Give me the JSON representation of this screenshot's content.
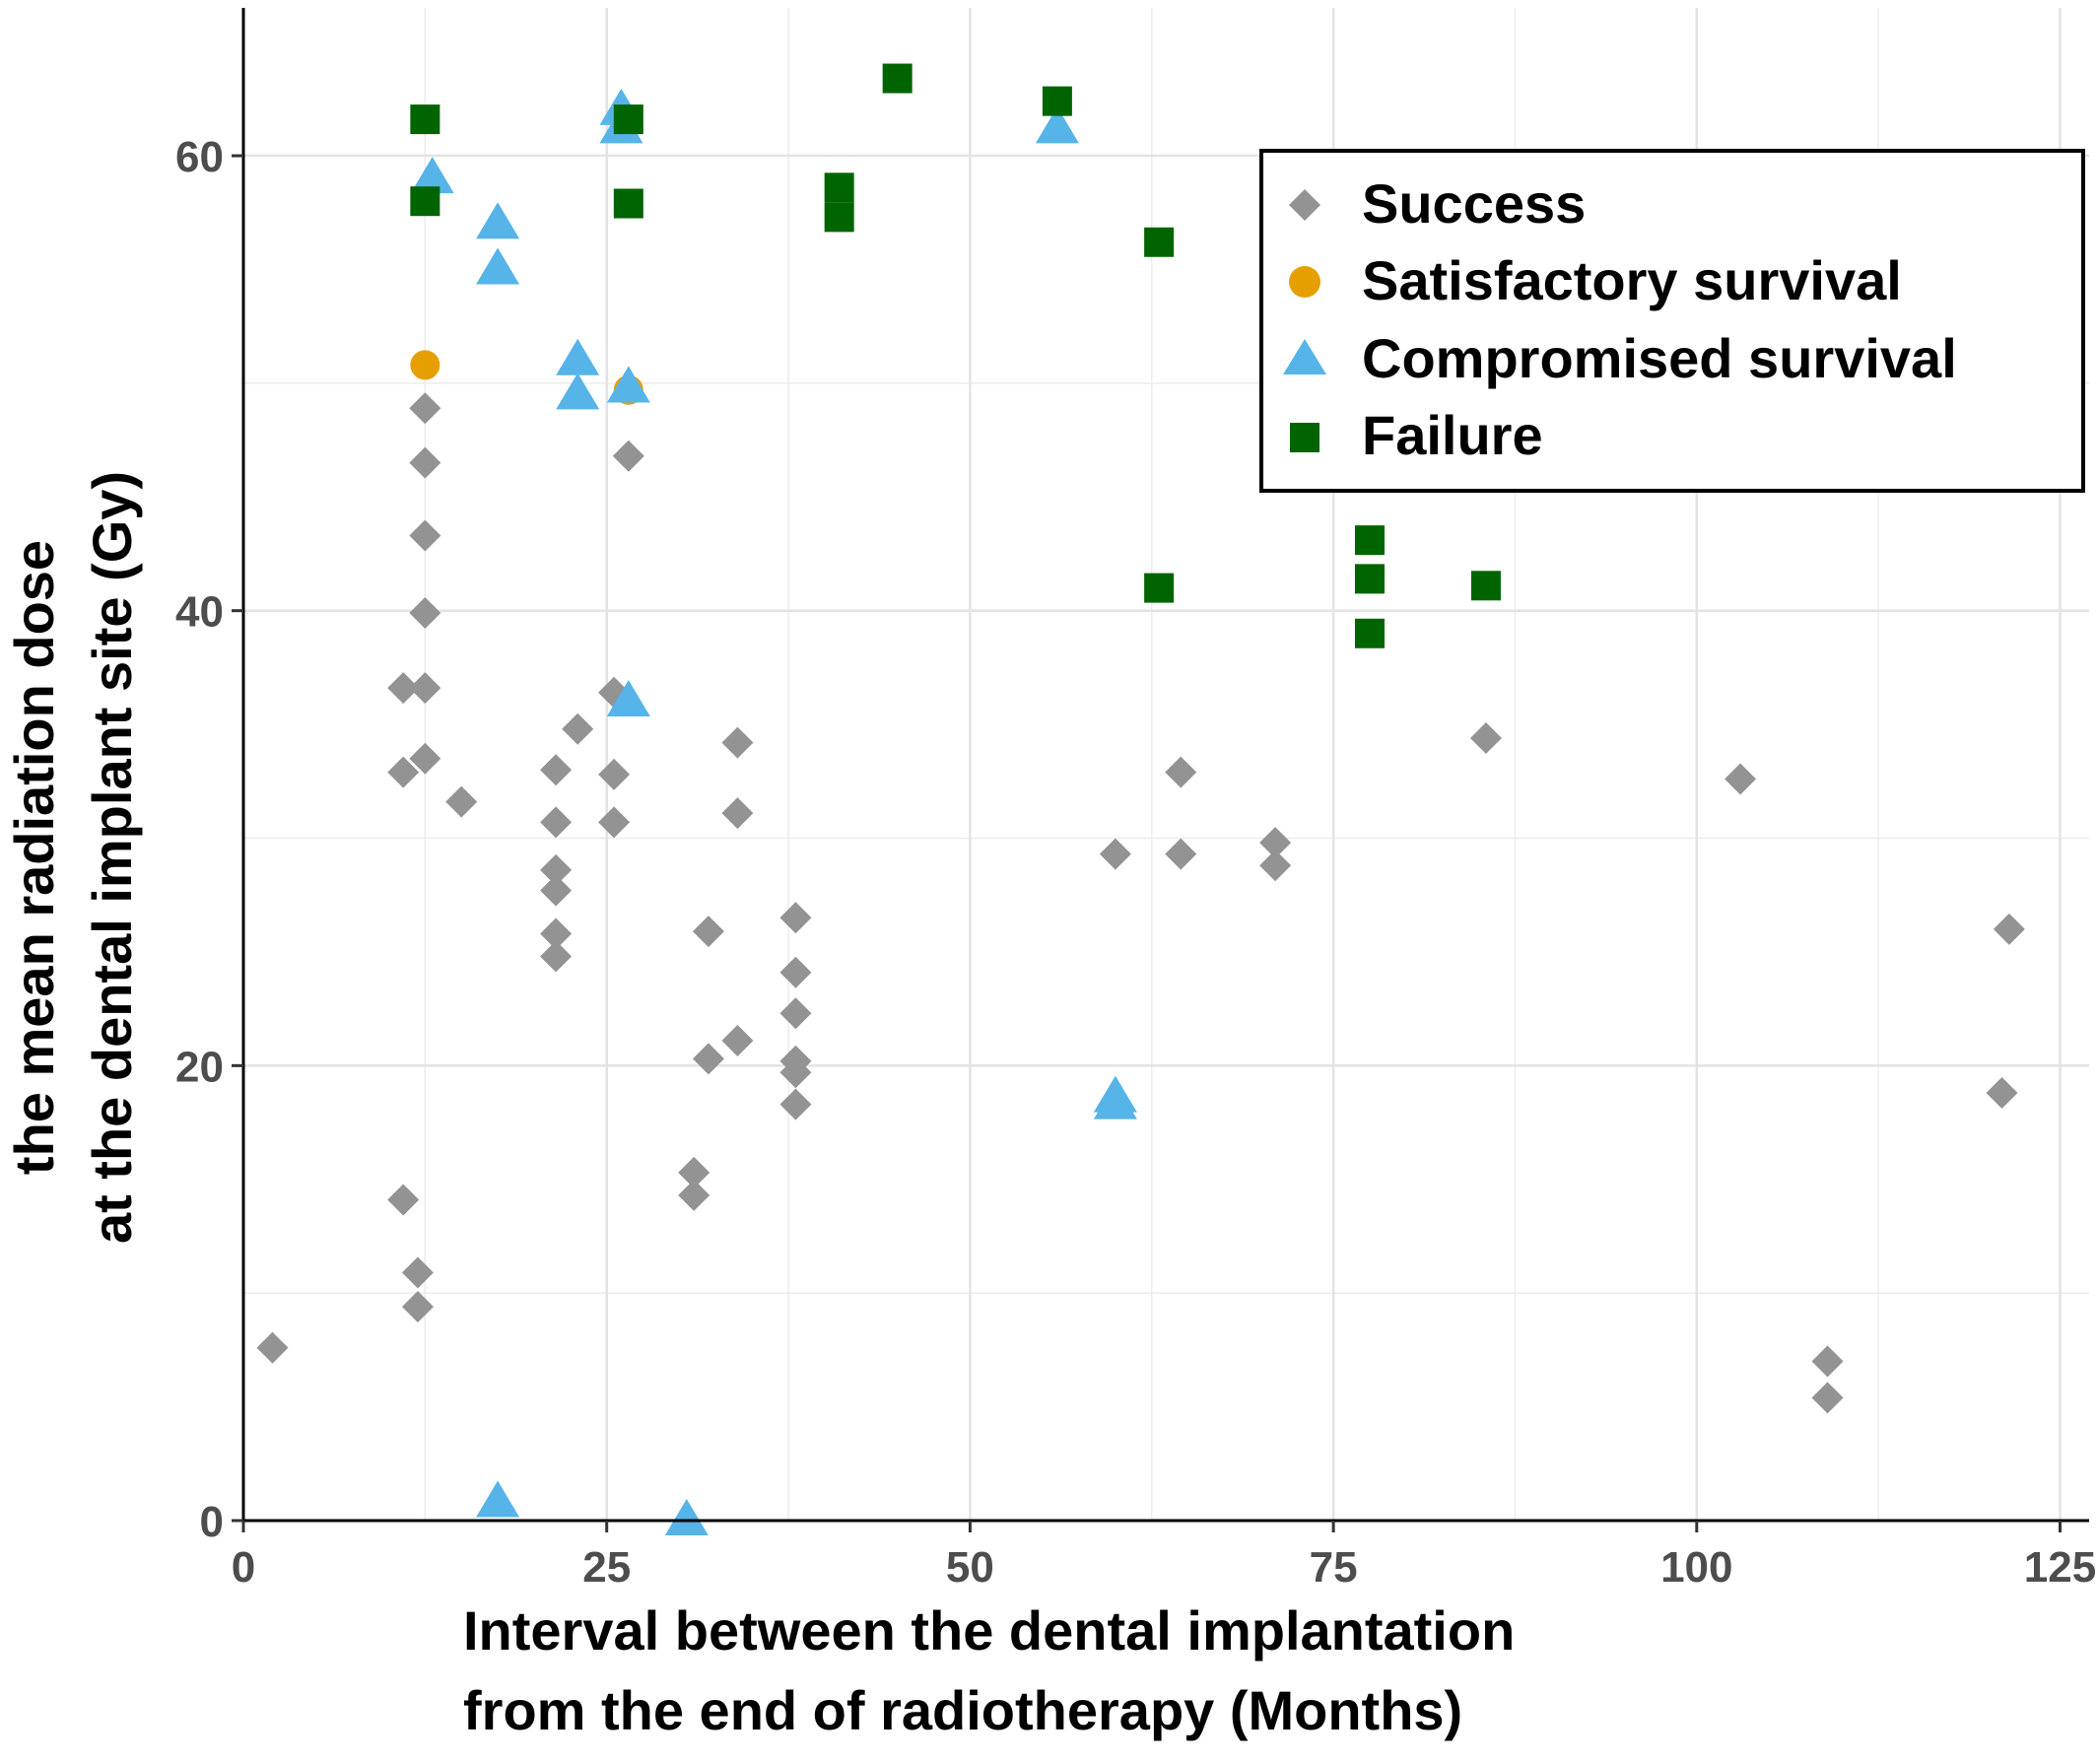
{
  "chart_data": {
    "type": "scatter",
    "xlabel": [
      "Interval between the dental implantation",
      "from the end of radiotherapy (Months)"
    ],
    "ylabel": [
      "the mean radiation dose",
      "at the dental implant site (Gy)"
    ],
    "xlim": [
      0,
      127
    ],
    "ylim": [
      0,
      66.5
    ],
    "xticks": [
      0,
      25,
      50,
      75,
      100,
      125
    ],
    "yticks": [
      0,
      20,
      40,
      60
    ],
    "grid": true,
    "legend_position": "top-right",
    "series": [
      {
        "name": "Success",
        "marker": "diamond",
        "color": "#939393",
        "points": [
          [
            2,
            7.6
          ],
          [
            11,
            36.6
          ],
          [
            11,
            32.9
          ],
          [
            11,
            14.1
          ],
          [
            12,
            10.9
          ],
          [
            12,
            9.4
          ],
          [
            12.5,
            48.9
          ],
          [
            12.5,
            46.5
          ],
          [
            12.5,
            43.3
          ],
          [
            12.5,
            39.9
          ],
          [
            12.5,
            36.6
          ],
          [
            12.5,
            33.5
          ],
          [
            15,
            31.6
          ],
          [
            21.5,
            33
          ],
          [
            21.5,
            30.7
          ],
          [
            21.5,
            28.6
          ],
          [
            21.5,
            27.7
          ],
          [
            21.5,
            25.8
          ],
          [
            21.5,
            24.8
          ],
          [
            23,
            34.8
          ],
          [
            25.5,
            36.4
          ],
          [
            25.5,
            32.8
          ],
          [
            25.5,
            30.7
          ],
          [
            26.5,
            46.8
          ],
          [
            31,
            15.3
          ],
          [
            31,
            14.3
          ],
          [
            32,
            25.9
          ],
          [
            32,
            20.3
          ],
          [
            34,
            34.2
          ],
          [
            34,
            31.1
          ],
          [
            34,
            21.1
          ],
          [
            38,
            26.5
          ],
          [
            38,
            24.1
          ],
          [
            38,
            22.3
          ],
          [
            38,
            20.2
          ],
          [
            38,
            19.7
          ],
          [
            38,
            18.3
          ],
          [
            60,
            29.3
          ],
          [
            64.5,
            32.9
          ],
          [
            64.5,
            29.3
          ],
          [
            71,
            29.8
          ],
          [
            71,
            28.8
          ],
          [
            85.5,
            34.4
          ],
          [
            103,
            32.6
          ],
          [
            109,
            7
          ],
          [
            109,
            5.4
          ],
          [
            121,
            18.8
          ],
          [
            121.5,
            26
          ]
        ]
      },
      {
        "name": "Satisfactory survival",
        "marker": "circle",
        "color": "#E69F00",
        "points": [
          [
            12.5,
            50.8
          ],
          [
            26.5,
            49.7
          ]
        ]
      },
      {
        "name": "Compromised survival",
        "marker": "triangle",
        "color": "#56B4E9",
        "points": [
          [
            13,
            59
          ],
          [
            17.5,
            57
          ],
          [
            17.5,
            55
          ],
          [
            23,
            51
          ],
          [
            23,
            49.5
          ],
          [
            26,
            62
          ],
          [
            26,
            61.2
          ],
          [
            26.5,
            49.8
          ],
          [
            26.5,
            36
          ],
          [
            56,
            61.2
          ],
          [
            60,
            18.6
          ],
          [
            60,
            18.3
          ],
          [
            17.5,
            0.8
          ],
          [
            30.5,
            0
          ]
        ]
      },
      {
        "name": "Failure",
        "marker": "square",
        "color": "#006400",
        "points": [
          [
            12.5,
            61.6
          ],
          [
            12.5,
            58
          ],
          [
            26.5,
            61.6
          ],
          [
            26.5,
            57.9
          ],
          [
            41,
            58.6
          ],
          [
            41,
            57.3
          ],
          [
            45,
            63.4
          ],
          [
            56,
            62.4
          ],
          [
            63,
            56.2
          ],
          [
            63,
            41
          ],
          [
            77.5,
            43.1
          ],
          [
            77.5,
            41.4
          ],
          [
            77.5,
            39
          ],
          [
            85.5,
            41.1
          ]
        ]
      }
    ]
  }
}
